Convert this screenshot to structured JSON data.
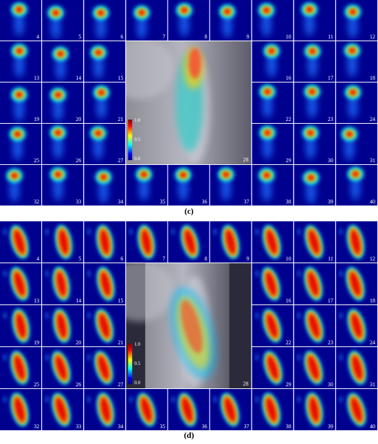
{
  "panels": [
    {
      "label": "(c)",
      "tiles": [
        4,
        5,
        6,
        7,
        8,
        9,
        10,
        11,
        12,
        13,
        14,
        15,
        16,
        17,
        18,
        19,
        20,
        21,
        22,
        23,
        24,
        25,
        26,
        27,
        29,
        30,
        31,
        32,
        33,
        34,
        35,
        36,
        37,
        38,
        39,
        40
      ],
      "center": {
        "number": 28,
        "colorbar_labels": [
          "1.0",
          "0.5",
          "0.0"
        ]
      }
    },
    {
      "label": "(d)",
      "tiles": [
        4,
        5,
        6,
        7,
        8,
        9,
        10,
        11,
        12,
        13,
        14,
        15,
        16,
        17,
        18,
        19,
        20,
        21,
        22,
        23,
        24,
        25,
        26,
        27,
        29,
        30,
        31,
        32,
        33,
        34,
        35,
        36,
        37,
        38,
        39,
        40
      ],
      "center": {
        "number": 28,
        "colorbar_labels": [
          "1.0",
          "0.5",
          "0.0"
        ]
      }
    }
  ]
}
